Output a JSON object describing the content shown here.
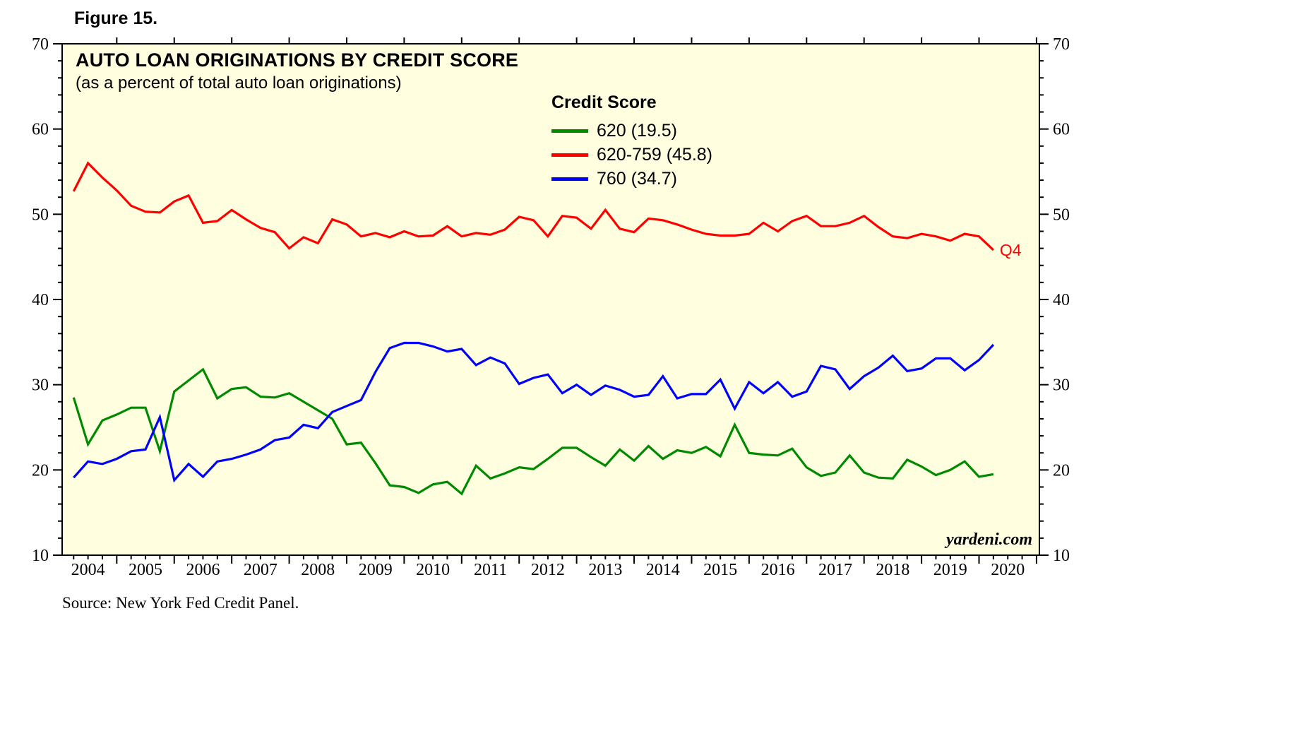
{
  "figure_label": "Figure 15.",
  "source_note": "Source: New York Fed Credit Panel.",
  "watermark": "yardeni.com",
  "chart_data": {
    "type": "line",
    "title": "AUTO LOAN ORIGINATIONS BY CREDIT SCORE",
    "subtitle": "(as a percent of total auto loan originations)",
    "plot_background": "#FFFFE0",
    "x_start": 2003.75,
    "x_step_years": 0.25,
    "x_axis": {
      "range": [
        2003.55,
        2020.55
      ],
      "tick_labels": [
        "2004",
        "2005",
        "2006",
        "2007",
        "2008",
        "2009",
        "2010",
        "2011",
        "2012",
        "2013",
        "2014",
        "2015",
        "2016",
        "2017",
        "2018",
        "2019",
        "2020"
      ]
    },
    "y_axis": {
      "range": [
        10,
        70
      ],
      "major_tick_step": 10,
      "minor_tick_step": 2,
      "tick_labels": [
        "10",
        "20",
        "30",
        "40",
        "50",
        "60",
        "70"
      ],
      "labels_both_sides": true
    },
    "legend": {
      "heading": "Credit Score",
      "entries": [
        {
          "label": "620 (19.5)",
          "color": "#008A00"
        },
        {
          "label": "620-759 (45.8)",
          "color": "#FF0000"
        },
        {
          "label": "760 (34.7)",
          "color": "#0000FF"
        }
      ]
    },
    "end_label": {
      "text": "Q4",
      "color": "#FF0000",
      "series_index": 1
    },
    "series": [
      {
        "name": "620 (19.5)",
        "color": "#008A00",
        "values": [
          28.5,
          23.0,
          25.8,
          26.5,
          27.3,
          27.3,
          22.2,
          29.2,
          30.5,
          31.8,
          28.4,
          29.5,
          29.7,
          28.6,
          28.5,
          29.0,
          28.0,
          27.0,
          26.0,
          23.0,
          23.2,
          20.8,
          18.2,
          18.0,
          17.3,
          18.3,
          18.6,
          17.2,
          20.5,
          19.0,
          19.6,
          20.3,
          20.1,
          21.3,
          22.6,
          22.6,
          21.5,
          20.5,
          22.4,
          21.1,
          22.8,
          21.3,
          22.3,
          22.0,
          22.7,
          21.6,
          25.3,
          22.0,
          21.8,
          21.7,
          22.5,
          20.3,
          19.3,
          19.7,
          21.7,
          19.7,
          19.1,
          19.0,
          21.2,
          20.4,
          19.4,
          20.0,
          21.0,
          19.2,
          19.5
        ]
      },
      {
        "name": "620-759 (45.8)",
        "color": "#FF0000",
        "values": [
          52.7,
          56.0,
          54.3,
          52.8,
          51.0,
          50.3,
          50.2,
          51.5,
          52.2,
          49.0,
          49.2,
          50.5,
          49.4,
          48.4,
          47.9,
          46.0,
          47.3,
          46.6,
          49.4,
          48.8,
          47.4,
          47.8,
          47.3,
          48.0,
          47.4,
          47.5,
          48.6,
          47.4,
          47.8,
          47.6,
          48.2,
          49.7,
          49.3,
          47.4,
          49.8,
          49.6,
          48.3,
          50.5,
          48.3,
          47.9,
          49.5,
          49.3,
          48.8,
          48.2,
          47.7,
          47.5,
          47.5,
          47.7,
          49.0,
          48.0,
          49.2,
          49.8,
          48.6,
          48.6,
          49.0,
          49.8,
          48.5,
          47.4,
          47.2,
          47.7,
          47.4,
          46.9,
          47.7,
          47.4,
          45.8
        ]
      },
      {
        "name": "760 (34.7)",
        "color": "#0000FF",
        "values": [
          19.1,
          21.0,
          20.7,
          21.3,
          22.2,
          22.4,
          26.2,
          18.8,
          20.7,
          19.2,
          21.0,
          21.3,
          21.8,
          22.4,
          23.5,
          23.8,
          25.3,
          24.9,
          26.8,
          27.5,
          28.2,
          31.5,
          34.3,
          34.9,
          34.9,
          34.5,
          33.9,
          34.2,
          32.3,
          33.2,
          32.5,
          30.1,
          30.8,
          31.2,
          29.0,
          30.0,
          28.8,
          29.9,
          29.4,
          28.6,
          28.8,
          31.0,
          28.4,
          28.9,
          28.9,
          30.6,
          27.2,
          30.3,
          29.0,
          30.3,
          28.6,
          29.2,
          32.2,
          31.8,
          29.5,
          31.0,
          32.0,
          33.4,
          31.6,
          31.9,
          33.1,
          33.1,
          31.7,
          32.9,
          34.7
        ]
      }
    ]
  }
}
